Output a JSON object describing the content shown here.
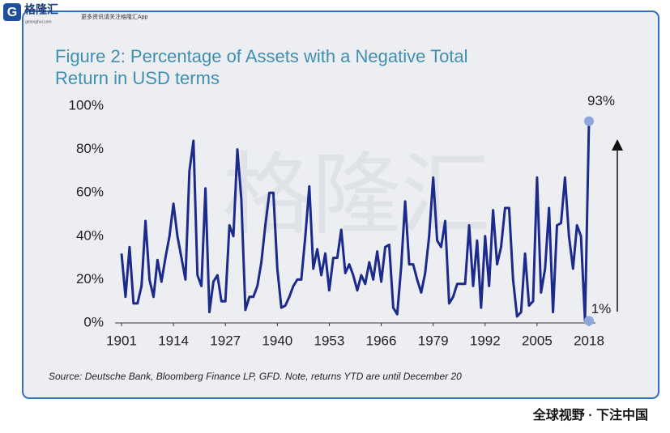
{
  "header": {
    "logo": "格隆汇",
    "site": "gelonghui.com",
    "slogan": "更多资讯请关注格隆汇App"
  },
  "chart_data": {
    "type": "line",
    "title": [
      "Figure 2: Percentage of Assets with a Negative Total",
      "Return in USD terms"
    ],
    "x": [
      1901,
      1902,
      1903,
      1904,
      1905,
      1906,
      1907,
      1908,
      1909,
      1910,
      1911,
      1912,
      1913,
      1914,
      1915,
      1916,
      1917,
      1918,
      1919,
      1920,
      1921,
      1922,
      1923,
      1924,
      1925,
      1926,
      1927,
      1928,
      1929,
      1930,
      1931,
      1932,
      1933,
      1934,
      1935,
      1936,
      1937,
      1938,
      1939,
      1940,
      1941,
      1942,
      1943,
      1944,
      1945,
      1946,
      1947,
      1948,
      1949,
      1950,
      1951,
      1952,
      1953,
      1954,
      1955,
      1956,
      1957,
      1958,
      1959,
      1960,
      1961,
      1962,
      1963,
      1964,
      1965,
      1966,
      1967,
      1968,
      1969,
      1970,
      1971,
      1972,
      1973,
      1974,
      1975,
      1976,
      1977,
      1978,
      1979,
      1980,
      1981,
      1982,
      1983,
      1984,
      1985,
      1986,
      1987,
      1988,
      1989,
      1990,
      1991,
      1992,
      1993,
      1994,
      1995,
      1996,
      1997,
      1998,
      1999,
      2000,
      2001,
      2002,
      2003,
      2004,
      2005,
      2006,
      2007,
      2008,
      2009,
      2010,
      2011,
      2012,
      2013,
      2014,
      2015,
      2016,
      2017,
      2018
    ],
    "series": [
      {
        "name": "Percentage of Assets with a Negative Total Return",
        "color": "#1c2a8c",
        "values": [
          32,
          12,
          35,
          9,
          9,
          17,
          47,
          20,
          12,
          29,
          19,
          30,
          40,
          55,
          40,
          30,
          20,
          70,
          84,
          22,
          17,
          62,
          5,
          19,
          22,
          10,
          10,
          45,
          40,
          80,
          57,
          6,
          12,
          12,
          17,
          28,
          45,
          60,
          60,
          25,
          7,
          8,
          12,
          17,
          20,
          20,
          40,
          63,
          25,
          34,
          22,
          32,
          15,
          30,
          30,
          43,
          23,
          27,
          22,
          15,
          22,
          18,
          28,
          20,
          33,
          19,
          35,
          36,
          7,
          4,
          26,
          56,
          27,
          27,
          20,
          14,
          23,
          40,
          67,
          38,
          35,
          47,
          9,
          12,
          18,
          18,
          18,
          45,
          17,
          38,
          7,
          40,
          17,
          52,
          27,
          35,
          53,
          53,
          20,
          3,
          5,
          32,
          8,
          10,
          67,
          14,
          25,
          53,
          5,
          45,
          46,
          67,
          40,
          25,
          45,
          40,
          1,
          93
        ]
      }
    ],
    "xlim": [
      1901,
      2018
    ],
    "xticks": [
      1901,
      1914,
      1927,
      1940,
      1953,
      1966,
      1979,
      1992,
      2005,
      2018
    ],
    "ylim": [
      0,
      100
    ],
    "yticks": [
      {
        "value": 0,
        "label": "0%"
      },
      {
        "value": 20,
        "label": "20%"
      },
      {
        "value": 40,
        "label": "40%"
      },
      {
        "value": 60,
        "label": "60%"
      },
      {
        "value": 80,
        "label": "80%"
      },
      {
        "value": 100,
        "label": "100%"
      }
    ],
    "annotations": [
      "93%",
      "1%"
    ],
    "source": "Source: Deutsche Bank, Bloomberg Finance LP, GFD. Note, returns YTD are until December 20"
  },
  "footer": "全球视野 · 下注中国"
}
